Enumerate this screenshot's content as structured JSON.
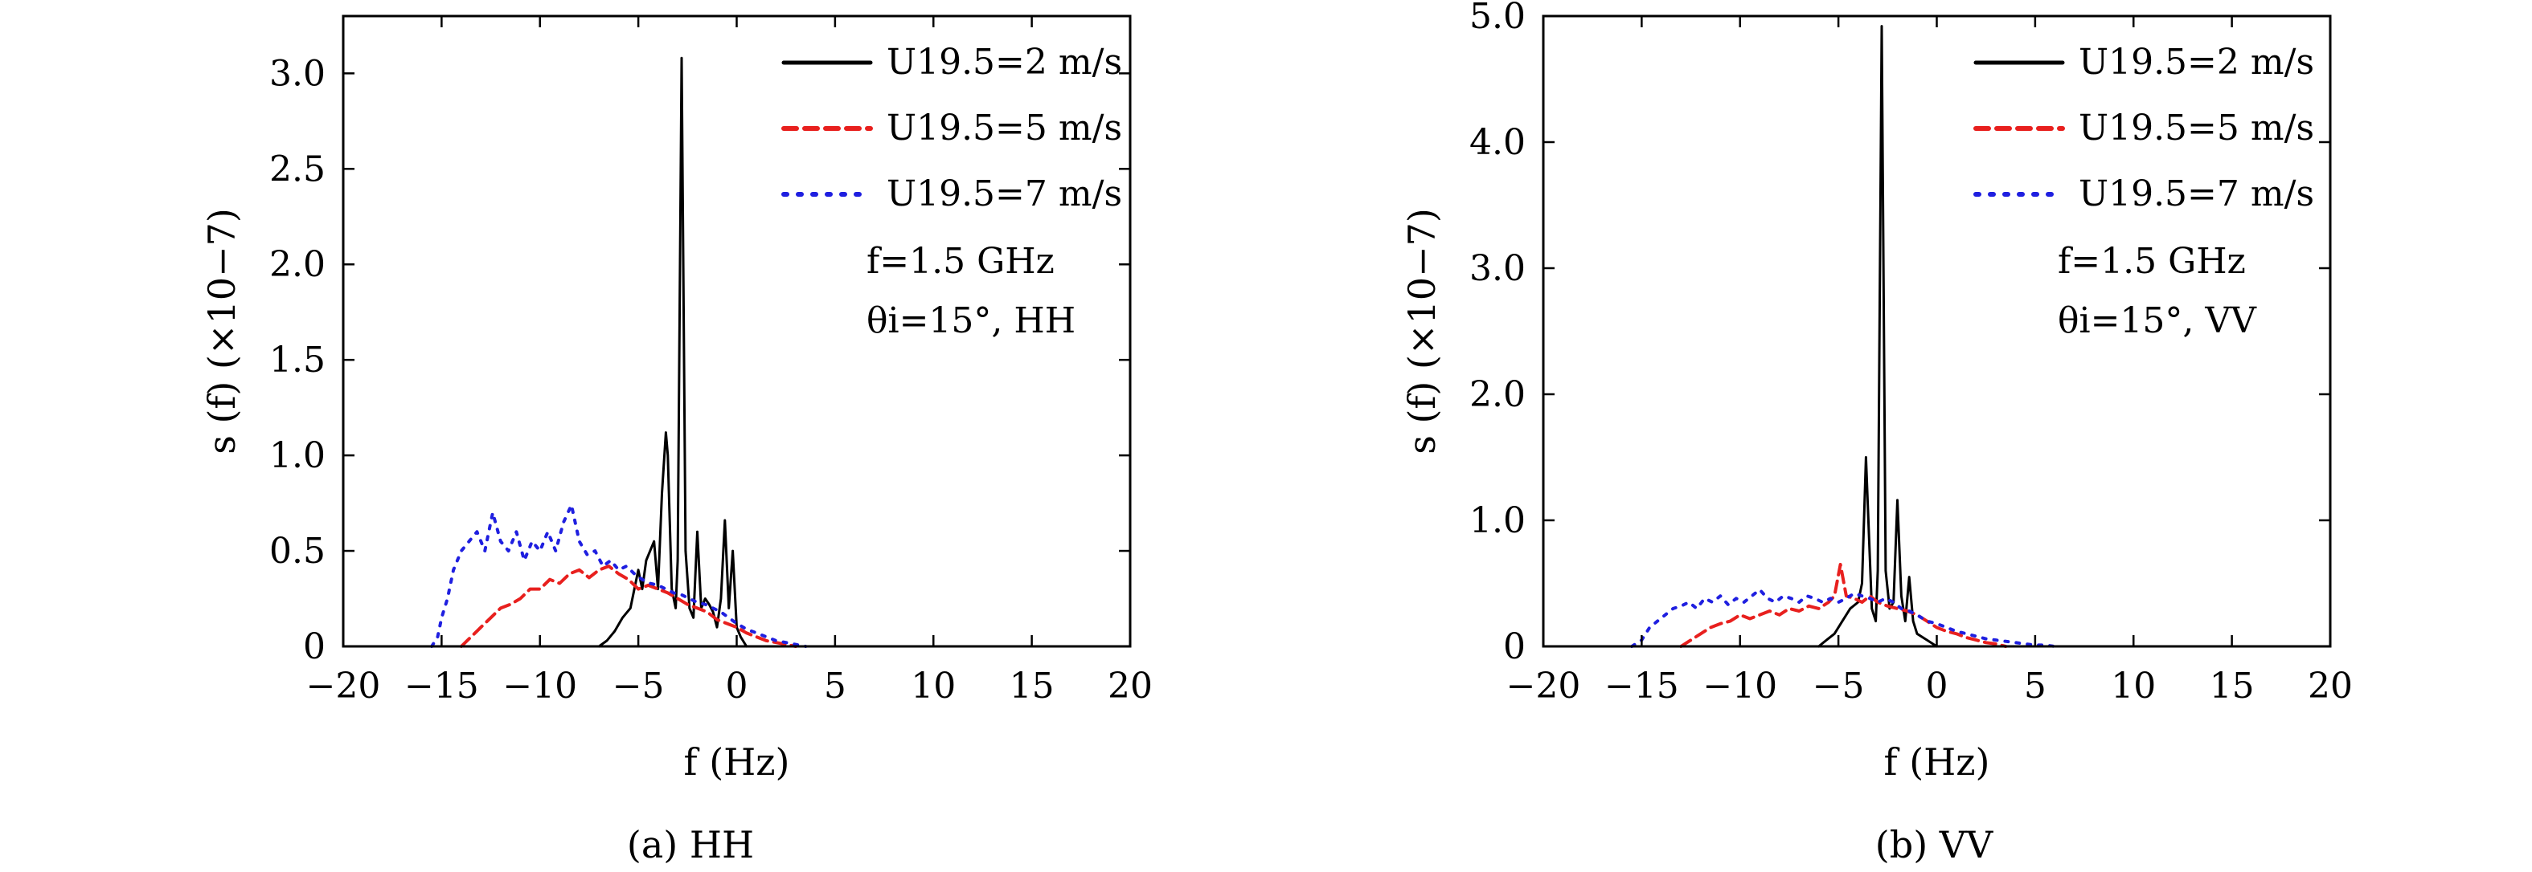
{
  "chart_data": [
    {
      "type": "line",
      "caption": "(a) HH",
      "xlabel": "f (Hz)",
      "ylabel": "s (f) (×10−7)",
      "xlim": [
        -20,
        20
      ],
      "ylim": [
        0,
        3.3
      ],
      "xticks": [
        -20,
        -15,
        -10,
        -5,
        0,
        5,
        10,
        15,
        20
      ],
      "xtick_labels": [
        "−20",
        "−15",
        "−10",
        "−5",
        "0",
        "5",
        "10",
        "15",
        "20"
      ],
      "yticks": [
        0,
        0.5,
        1.0,
        1.5,
        2.0,
        2.5,
        3.0
      ],
      "ytick_labels": [
        "0",
        "0.5",
        "1.0",
        "1.5",
        "2.0",
        "2.5",
        "3.0"
      ],
      "grid": false,
      "legend_position": "top-right",
      "annotations": [
        "f=1.5 GHz",
        "θi=15°, HH"
      ],
      "series": [
        {
          "name": "U19.5=2 m/s",
          "color": "#000000",
          "style": "solid",
          "points": [
            [
              -7,
              0
            ],
            [
              -6.6,
              0.03
            ],
            [
              -6.2,
              0.08
            ],
            [
              -5.8,
              0.15
            ],
            [
              -5.4,
              0.2
            ],
            [
              -5.2,
              0.3
            ],
            [
              -5,
              0.4
            ],
            [
              -4.8,
              0.3
            ],
            [
              -4.6,
              0.45
            ],
            [
              -4.4,
              0.5
            ],
            [
              -4.2,
              0.55
            ],
            [
              -4,
              0.3
            ],
            [
              -3.8,
              0.8
            ],
            [
              -3.6,
              1.12
            ],
            [
              -3.5,
              1.0
            ],
            [
              -3.3,
              0.3
            ],
            [
              -3.1,
              0.2
            ],
            [
              -3,
              0.45
            ],
            [
              -2.8,
              3.08
            ],
            [
              -2.6,
              0.5
            ],
            [
              -2.4,
              0.2
            ],
            [
              -2.2,
              0.15
            ],
            [
              -2,
              0.6
            ],
            [
              -1.8,
              0.2
            ],
            [
              -1.6,
              0.25
            ],
            [
              -1.4,
              0.22
            ],
            [
              -1.2,
              0.18
            ],
            [
              -1,
              0.1
            ],
            [
              -0.8,
              0.25
            ],
            [
              -0.6,
              0.66
            ],
            [
              -0.4,
              0.2
            ],
            [
              -0.2,
              0.5
            ],
            [
              0,
              0.1
            ],
            [
              0.2,
              0.05
            ],
            [
              0.5,
              0.0
            ]
          ]
        },
        {
          "name": "U19.5=5 m/s",
          "color": "#e8201e",
          "style": "dashed",
          "points": [
            [
              -14,
              0
            ],
            [
              -13.5,
              0.05
            ],
            [
              -13,
              0.1
            ],
            [
              -12.5,
              0.15
            ],
            [
              -12,
              0.2
            ],
            [
              -11.5,
              0.22
            ],
            [
              -11,
              0.25
            ],
            [
              -10.5,
              0.3
            ],
            [
              -10,
              0.3
            ],
            [
              -9.5,
              0.35
            ],
            [
              -9,
              0.33
            ],
            [
              -8.5,
              0.38
            ],
            [
              -8,
              0.4
            ],
            [
              -7.5,
              0.36
            ],
            [
              -7,
              0.4
            ],
            [
              -6.5,
              0.42
            ],
            [
              -6,
              0.38
            ],
            [
              -5.5,
              0.35
            ],
            [
              -5,
              0.3
            ],
            [
              -4.5,
              0.32
            ],
            [
              -4,
              0.3
            ],
            [
              -3.5,
              0.28
            ],
            [
              -3,
              0.25
            ],
            [
              -2.5,
              0.22
            ],
            [
              -2,
              0.2
            ],
            [
              -1.5,
              0.18
            ],
            [
              -1,
              0.14
            ],
            [
              -0.5,
              0.12
            ],
            [
              0,
              0.1
            ],
            [
              0.5,
              0.07
            ],
            [
              1,
              0.05
            ],
            [
              1.5,
              0.03
            ],
            [
              2,
              0.02
            ],
            [
              2.5,
              0.01
            ],
            [
              3,
              0
            ]
          ]
        },
        {
          "name": "U19.5=7 m/s",
          "color": "#1f1fe0",
          "style": "dotted",
          "points": [
            [
              -15.5,
              0
            ],
            [
              -15.2,
              0.05
            ],
            [
              -15,
              0.15
            ],
            [
              -14.7,
              0.25
            ],
            [
              -14.4,
              0.4
            ],
            [
              -14,
              0.5
            ],
            [
              -13.6,
              0.55
            ],
            [
              -13.2,
              0.6
            ],
            [
              -12.8,
              0.5
            ],
            [
              -12.4,
              0.7
            ],
            [
              -12,
              0.55
            ],
            [
              -11.6,
              0.5
            ],
            [
              -11.2,
              0.6
            ],
            [
              -10.8,
              0.45
            ],
            [
              -10.4,
              0.55
            ],
            [
              -10,
              0.5
            ],
            [
              -9.6,
              0.6
            ],
            [
              -9.2,
              0.5
            ],
            [
              -8.8,
              0.65
            ],
            [
              -8.4,
              0.74
            ],
            [
              -8,
              0.55
            ],
            [
              -7.6,
              0.48
            ],
            [
              -7.2,
              0.5
            ],
            [
              -6.8,
              0.42
            ],
            [
              -6.4,
              0.45
            ],
            [
              -6,
              0.4
            ],
            [
              -5.6,
              0.42
            ],
            [
              -5.2,
              0.38
            ],
            [
              -4.8,
              0.35
            ],
            [
              -4.4,
              0.33
            ],
            [
              -4,
              0.32
            ],
            [
              -3.6,
              0.3
            ],
            [
              -3.2,
              0.28
            ],
            [
              -2.8,
              0.27
            ],
            [
              -2.4,
              0.25
            ],
            [
              -2,
              0.23
            ],
            [
              -1.6,
              0.22
            ],
            [
              -1.2,
              0.2
            ],
            [
              -0.8,
              0.18
            ],
            [
              -0.4,
              0.15
            ],
            [
              0,
              0.12
            ],
            [
              0.5,
              0.09
            ],
            [
              1,
              0.07
            ],
            [
              1.5,
              0.05
            ],
            [
              2,
              0.03
            ],
            [
              2.5,
              0.02
            ],
            [
              3,
              0.01
            ],
            [
              3.5,
              0
            ]
          ]
        }
      ]
    },
    {
      "type": "line",
      "caption": "(b) VV",
      "xlabel": "f (Hz)",
      "ylabel": "s (f) (×10−7)",
      "xlim": [
        -20,
        20
      ],
      "ylim": [
        0,
        5.0
      ],
      "xticks": [
        -20,
        -15,
        -10,
        -5,
        0,
        5,
        10,
        15,
        20
      ],
      "xtick_labels": [
        "−20",
        "−15",
        "−10",
        "−5",
        "0",
        "5",
        "10",
        "15",
        "20"
      ],
      "yticks": [
        0,
        1.0,
        2.0,
        3.0,
        4.0,
        5.0
      ],
      "ytick_labels": [
        "0",
        "1.0",
        "2.0",
        "3.0",
        "4.0",
        "5.0"
      ],
      "grid": false,
      "legend_position": "top-right",
      "annotations": [
        "f=1.5 GHz",
        "θi=15°, VV"
      ],
      "series": [
        {
          "name": "U19.5=2 m/s",
          "color": "#000000",
          "style": "solid",
          "points": [
            [
              -6,
              0
            ],
            [
              -5.6,
              0.05
            ],
            [
              -5.2,
              0.1
            ],
            [
              -4.8,
              0.2
            ],
            [
              -4.4,
              0.3
            ],
            [
              -4,
              0.35
            ],
            [
              -3.8,
              0.5
            ],
            [
              -3.6,
              1.5
            ],
            [
              -3.5,
              1.1
            ],
            [
              -3.3,
              0.3
            ],
            [
              -3.1,
              0.2
            ],
            [
              -3,
              0.6
            ],
            [
              -2.8,
              4.92
            ],
            [
              -2.6,
              0.6
            ],
            [
              -2.4,
              0.3
            ],
            [
              -2.2,
              0.35
            ],
            [
              -2,
              1.16
            ],
            [
              -1.8,
              0.4
            ],
            [
              -1.6,
              0.2
            ],
            [
              -1.4,
              0.55
            ],
            [
              -1.2,
              0.2
            ],
            [
              -1,
              0.1
            ],
            [
              -0.5,
              0.05
            ],
            [
              0,
              0
            ]
          ]
        },
        {
          "name": "U19.5=5 m/s",
          "color": "#e8201e",
          "style": "dashed",
          "points": [
            [
              -13,
              0
            ],
            [
              -12.5,
              0.05
            ],
            [
              -12,
              0.1
            ],
            [
              -11.5,
              0.15
            ],
            [
              -11,
              0.18
            ],
            [
              -10.5,
              0.2
            ],
            [
              -10,
              0.25
            ],
            [
              -9.5,
              0.22
            ],
            [
              -9,
              0.25
            ],
            [
              -8.5,
              0.28
            ],
            [
              -8,
              0.25
            ],
            [
              -7.5,
              0.3
            ],
            [
              -7,
              0.28
            ],
            [
              -6.5,
              0.32
            ],
            [
              -6,
              0.3
            ],
            [
              -5.5,
              0.35
            ],
            [
              -5.2,
              0.4
            ],
            [
              -4.9,
              0.65
            ],
            [
              -4.6,
              0.4
            ],
            [
              -4.2,
              0.38
            ],
            [
              -3.8,
              0.35
            ],
            [
              -3.4,
              0.4
            ],
            [
              -3,
              0.35
            ],
            [
              -2.5,
              0.32
            ],
            [
              -2,
              0.3
            ],
            [
              -1.5,
              0.28
            ],
            [
              -1,
              0.25
            ],
            [
              -0.5,
              0.2
            ],
            [
              0,
              0.15
            ],
            [
              0.5,
              0.12
            ],
            [
              1,
              0.1
            ],
            [
              1.5,
              0.07
            ],
            [
              2,
              0.05
            ],
            [
              2.5,
              0.03
            ],
            [
              3,
              0.02
            ],
            [
              3.5,
              0
            ]
          ]
        },
        {
          "name": "U19.5=7 m/s",
          "color": "#1f1fe0",
          "style": "dotted",
          "points": [
            [
              -15.5,
              0
            ],
            [
              -15,
              0.05
            ],
            [
              -14.6,
              0.15
            ],
            [
              -14.2,
              0.2
            ],
            [
              -13.8,
              0.25
            ],
            [
              -13.4,
              0.3
            ],
            [
              -13,
              0.32
            ],
            [
              -12.6,
              0.35
            ],
            [
              -12.2,
              0.3
            ],
            [
              -11.8,
              0.38
            ],
            [
              -11.4,
              0.35
            ],
            [
              -11,
              0.4
            ],
            [
              -10.6,
              0.33
            ],
            [
              -10.2,
              0.38
            ],
            [
              -9.8,
              0.35
            ],
            [
              -9.4,
              0.4
            ],
            [
              -9,
              0.45
            ],
            [
              -8.6,
              0.38
            ],
            [
              -8.2,
              0.35
            ],
            [
              -7.8,
              0.4
            ],
            [
              -7.4,
              0.38
            ],
            [
              -7,
              0.35
            ],
            [
              -6.6,
              0.4
            ],
            [
              -6.2,
              0.38
            ],
            [
              -5.8,
              0.35
            ],
            [
              -5.4,
              0.38
            ],
            [
              -5,
              0.35
            ],
            [
              -4.6,
              0.38
            ],
            [
              -4.2,
              0.42
            ],
            [
              -3.8,
              0.4
            ],
            [
              -3.4,
              0.38
            ],
            [
              -3,
              0.35
            ],
            [
              -2.6,
              0.38
            ],
            [
              -2.2,
              0.35
            ],
            [
              -1.8,
              0.3
            ],
            [
              -1.4,
              0.28
            ],
            [
              -1,
              0.25
            ],
            [
              -0.5,
              0.2
            ],
            [
              0,
              0.18
            ],
            [
              0.5,
              0.15
            ],
            [
              1,
              0.12
            ],
            [
              1.5,
              0.1
            ],
            [
              2,
              0.08
            ],
            [
              2.5,
              0.06
            ],
            [
              3,
              0.05
            ],
            [
              3.5,
              0.04
            ],
            [
              4,
              0.03
            ],
            [
              4.5,
              0.02
            ],
            [
              5,
              0.01
            ],
            [
              5.5,
              0.01
            ],
            [
              6,
              0
            ]
          ]
        }
      ]
    }
  ]
}
